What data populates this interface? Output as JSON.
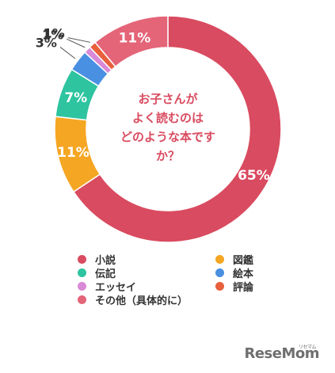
{
  "chart_data": {
    "type": "pie",
    "donut": true,
    "title": "お子さんがよく読むのはどのような本ですか？",
    "title_lines": [
      "お子さんが",
      "よく読むのは",
      "どのような本です",
      "か？"
    ],
    "categories": [
      "小説",
      "伝記",
      "エッセイ",
      "その他（具体的に）",
      "図鑑",
      "絵本",
      "評論"
    ],
    "slices": [
      {
        "label": "小説",
        "value": 65,
        "value_label": "65%",
        "color": "#d94b60"
      },
      {
        "label": "図鑑",
        "value": 11,
        "value_label": "11%",
        "color": "#f5a623"
      },
      {
        "label": "伝記",
        "value": 7,
        "value_label": "7%",
        "color": "#2ec4a0"
      },
      {
        "label": "絵本",
        "value": 3,
        "value_label": "3%",
        "color": "#4a90e2"
      },
      {
        "label": "エッセイ",
        "value": 1,
        "value_label": "1%",
        "color": "#d98ad6"
      },
      {
        "label": "評論",
        "value": 1,
        "value_label": "1%",
        "color": "#e8603c"
      },
      {
        "label": "その他（具体的に）",
        "value": 11,
        "value_label": "11%",
        "color": "#e46478"
      }
    ],
    "legend_placement": "bottom",
    "grid": false
  },
  "legend": [
    {
      "label": "小説",
      "color": "#d94b60"
    },
    {
      "label": "伝記",
      "color": "#2ec4a0"
    },
    {
      "label": "エッセイ",
      "color": "#d98ad6"
    },
    {
      "label": "その他（具体的に）",
      "color": "#e46478"
    },
    {
      "label": "図鑑",
      "color": "#f5a623"
    },
    {
      "label": "絵本",
      "color": "#4a90e2"
    },
    {
      "label": "評論",
      "color": "#e8603c"
    }
  ],
  "watermark": {
    "text": "ReseMom",
    "kana": "リセマム"
  }
}
